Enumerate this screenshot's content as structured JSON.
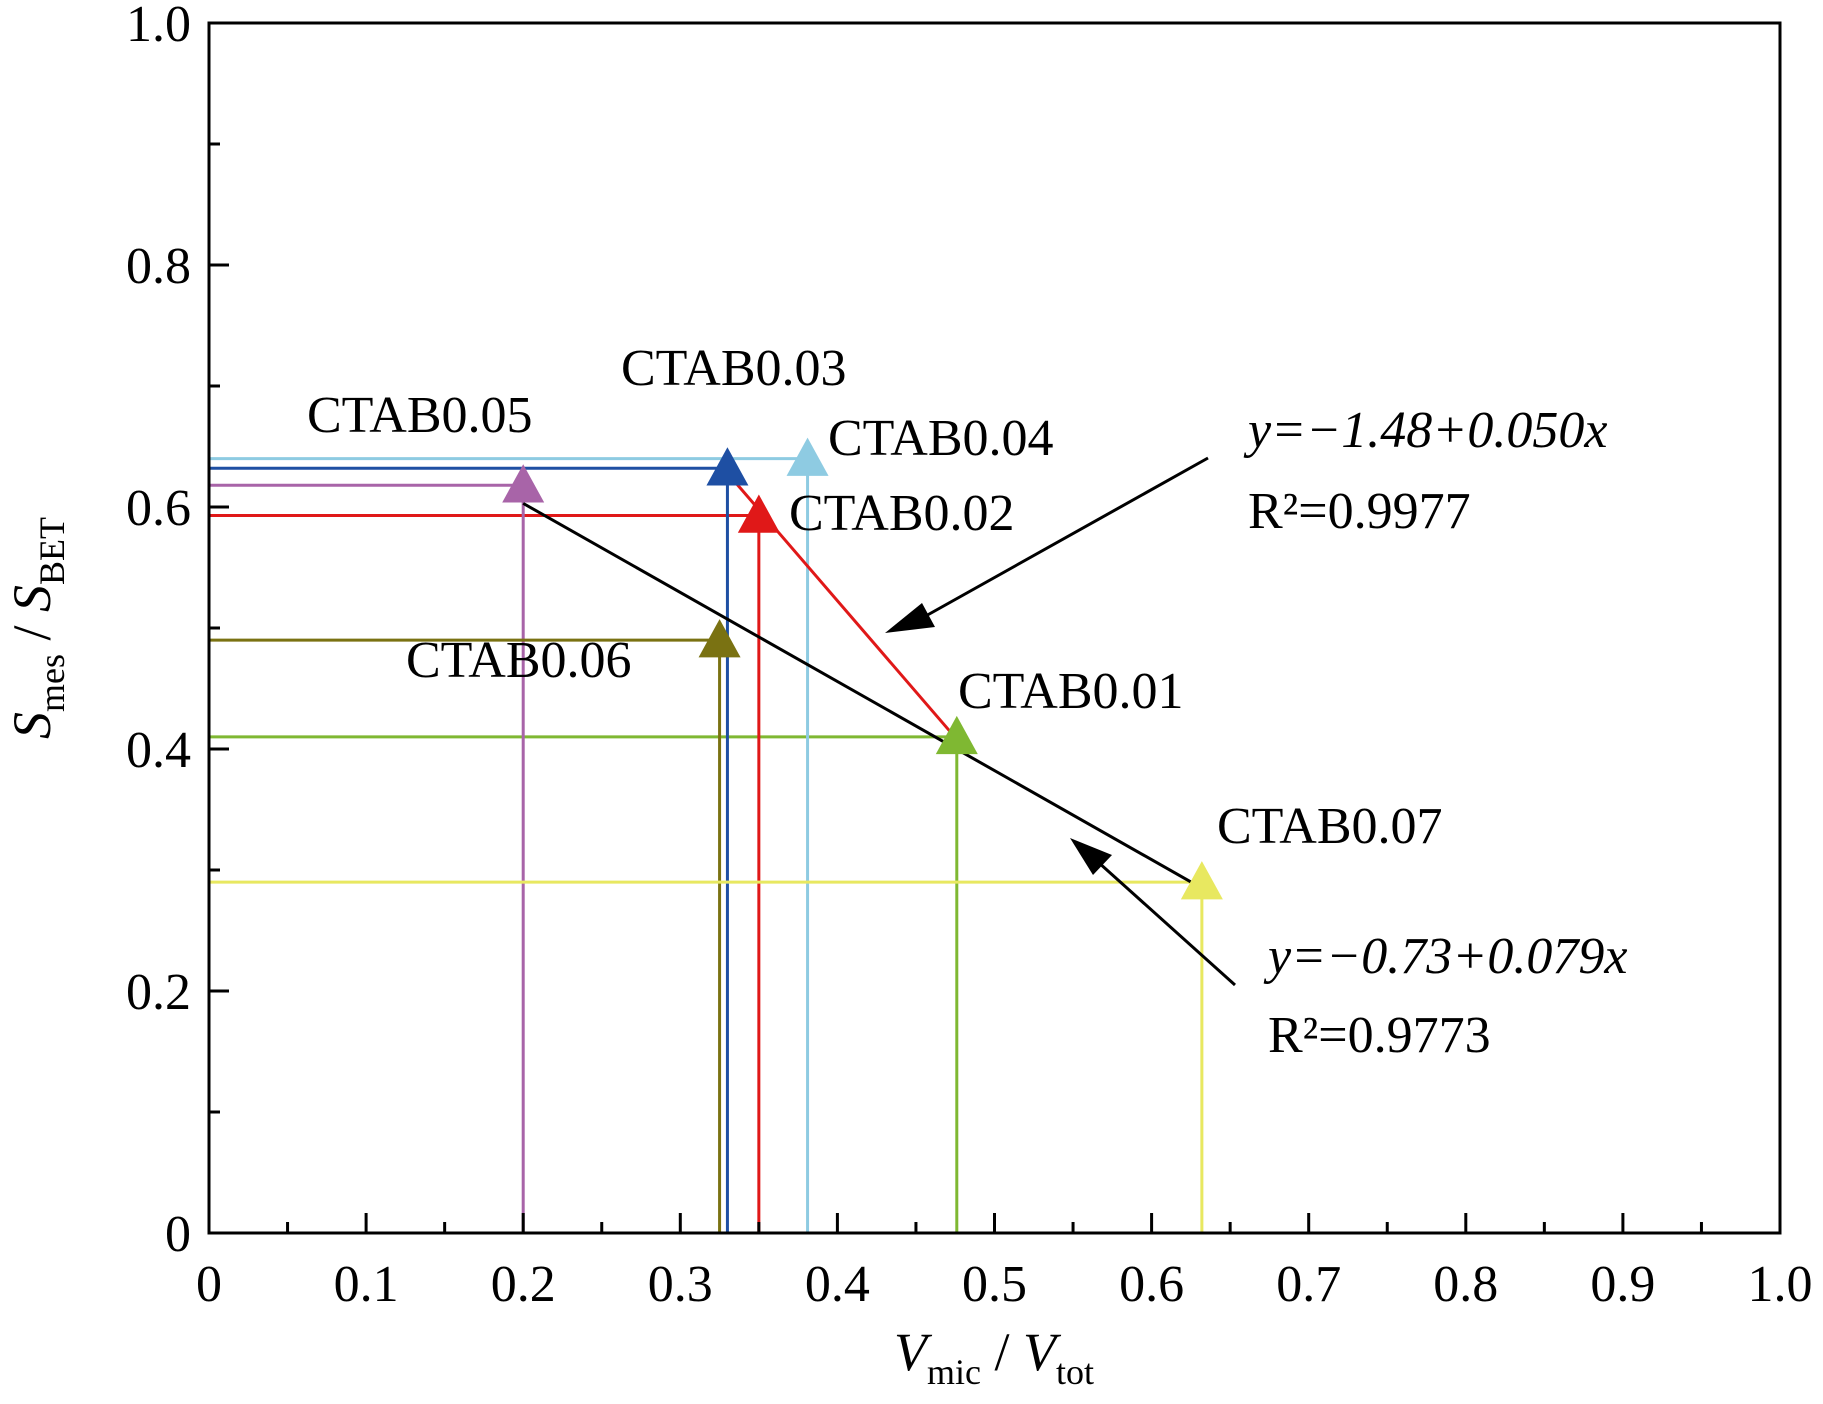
{
  "chart_data": {
    "type": "scatter",
    "xlabel": {
      "main": "V",
      "sub": "mic",
      "sep": " / ",
      "main2": "V",
      "sub2": "tot"
    },
    "ylabel": {
      "main": "S",
      "sub": "mes",
      "sep": " / ",
      "main2": "S",
      "sub2": "BET"
    },
    "xlim": [
      0,
      1.0
    ],
    "ylim": [
      0,
      1.0
    ],
    "xticks": [
      0,
      0.1,
      0.2,
      0.3,
      0.4,
      0.5,
      0.6,
      0.7,
      0.8,
      0.9,
      1.0
    ],
    "xtick_labels": [
      "0",
      "0.1",
      "0.2",
      "0.3",
      "0.4",
      "0.5",
      "0.6",
      "0.7",
      "0.8",
      "0.9",
      "1.0"
    ],
    "yticks": [
      0,
      0.2,
      0.4,
      0.6,
      0.8,
      1.0
    ],
    "ytick_labels": [
      "0",
      "0.2",
      "0.4",
      "0.6",
      "0.8",
      "1.0"
    ],
    "grid": false,
    "points": [
      {
        "label": "CTAB0.01",
        "x": 0.476,
        "y": 0.41,
        "color": "#7fb832"
      },
      {
        "label": "CTAB0.02",
        "x": 0.35,
        "y": 0.593,
        "color": "#e01818"
      },
      {
        "label": "CTAB0.03",
        "x": 0.33,
        "y": 0.632,
        "color": "#1e4fa3"
      },
      {
        "label": "CTAB0.04",
        "x": 0.381,
        "y": 0.64,
        "color": "#8ecbe2"
      },
      {
        "label": "CTAB0.05",
        "x": 0.2,
        "y": 0.618,
        "color": "#a864a8"
      },
      {
        "label": "CTAB0.06",
        "x": 0.325,
        "y": 0.49,
        "color": "#7a7212"
      },
      {
        "label": "CTAB0.07",
        "x": 0.632,
        "y": 0.29,
        "color": "#e8e860"
      }
    ],
    "fits": [
      {
        "equation": "y=−1.48+0.050x",
        "r2": "R²=0.9977",
        "x": [
          0.33,
          0.476
        ],
        "y": [
          0.628,
          0.408
        ],
        "color": "#e01818"
      },
      {
        "equation": "y=−0.73+0.079x",
        "r2": "R²=0.9773",
        "x": [
          0.2,
          0.632
        ],
        "y": [
          0.603,
          0.285
        ],
        "color": "#000000"
      }
    ]
  }
}
